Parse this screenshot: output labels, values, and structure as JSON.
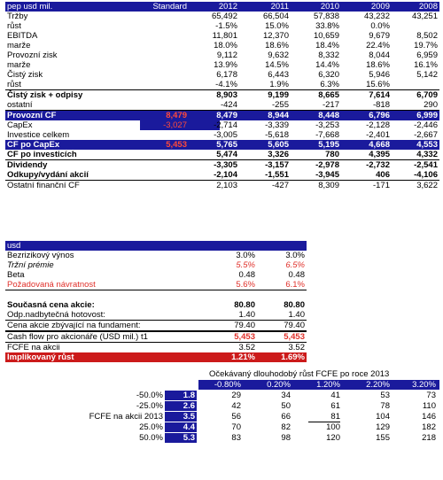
{
  "t1": {
    "header": {
      "label": "pep usd mil.",
      "standard": "Standard",
      "years": [
        "2012",
        "2011",
        "2010",
        "2009",
        "2008"
      ]
    },
    "rows": [
      {
        "label": "Tržby",
        "std": "",
        "vals": [
          "65,492",
          "66,504",
          "57,838",
          "43,232",
          "43,251"
        ],
        "style": ""
      },
      {
        "label": "   růst",
        "std": "",
        "vals": [
          "-1.5%",
          "15.0%",
          "33.8%",
          "0.0%",
          ""
        ],
        "style": ""
      },
      {
        "label": "EBITDA",
        "std": "",
        "vals": [
          "11,801",
          "12,370",
          "10,659",
          "9,679",
          "8,502"
        ],
        "style": ""
      },
      {
        "label": "   marže",
        "std": "",
        "vals": [
          "18.0%",
          "18.6%",
          "18.4%",
          "22.4%",
          "19.7%"
        ],
        "style": ""
      },
      {
        "label": "Provozní zisk",
        "std": "",
        "vals": [
          "9,112",
          "9,632",
          "8,332",
          "8,044",
          "6,959"
        ],
        "style": ""
      },
      {
        "label": "   marže",
        "std": "",
        "vals": [
          "13.9%",
          "14.5%",
          "14.4%",
          "18.6%",
          "16.1%"
        ],
        "style": ""
      },
      {
        "label": "Čistý zisk",
        "std": "",
        "vals": [
          "6,178",
          "6,443",
          "6,320",
          "5,946",
          "5,142"
        ],
        "style": ""
      },
      {
        "label": "   růst",
        "std": "",
        "vals": [
          "-4.1%",
          "1.9%",
          "6.3%",
          "15.6%",
          ""
        ],
        "style": "ul"
      },
      {
        "label": "Čistý zisk + odpisy",
        "std": "",
        "vals": [
          "8,903",
          "9,199",
          "8,665",
          "7,614",
          "6,709"
        ],
        "style": "bold"
      },
      {
        "label": "ostatní",
        "std": "",
        "vals": [
          "-424",
          "-255",
          "-217",
          "-818",
          "290"
        ],
        "style": "ul"
      },
      {
        "label": "Provozní CF",
        "std": "8,479",
        "vals": [
          "8,479",
          "8,944",
          "8,448",
          "6,796",
          "6,999"
        ],
        "style": "hdr bold"
      },
      {
        "label": "CapEx",
        "std": "-3,027",
        "vals": [
          "-2,714",
          "-3,339",
          "-3,253",
          "-2,128",
          "-2,446"
        ],
        "style": "capex"
      },
      {
        "label": "Investice celkem",
        "std": "",
        "vals": [
          "-3,005",
          "-5,618",
          "-7,668",
          "-2,401",
          "-2,667"
        ],
        "style": ""
      },
      {
        "label": "CF po CapEx",
        "std": "5,453",
        "vals": [
          "5,765",
          "5,605",
          "5,195",
          "4,668",
          "4,553"
        ],
        "style": "hdr bold"
      },
      {
        "label": "CF po investicích",
        "std": "",
        "vals": [
          "5,474",
          "3,326",
          "780",
          "4,395",
          "4,332"
        ],
        "style": "bold ul"
      },
      {
        "label": "Dividendy",
        "std": "",
        "vals": [
          "-3,305",
          "-3,157",
          "-2,978",
          "-2,732",
          "-2,541"
        ],
        "style": "bold"
      },
      {
        "label": "Odkupy/vydání akcií",
        "std": "",
        "vals": [
          "-2,104",
          "-1,551",
          "-3,945",
          "406",
          "-4,106"
        ],
        "style": "bold ul"
      },
      {
        "label": "Ostatní finanční CF",
        "std": "",
        "vals": [
          "2,103",
          "-427",
          "8,309",
          "-171",
          "3,622"
        ],
        "style": ""
      }
    ]
  },
  "t2": {
    "header": "usd",
    "rows": [
      {
        "label": "Bezrizikový výnos",
        "a": "3.0%",
        "b": "3.0%",
        "style": ""
      },
      {
        "label": "Tržní prémie",
        "a": "5.5%",
        "b": "6.5%",
        "style": "ital-red"
      },
      {
        "label": "Beta",
        "a": "0.48",
        "b": "0.48",
        "style": ""
      },
      {
        "label": "Požadovaná návratnost",
        "a": "5.6%",
        "b": "6.1%",
        "style": "red ul"
      },
      {
        "label": "",
        "a": "",
        "b": "",
        "style": ""
      },
      {
        "label": "Současná cena akcie:",
        "a": "80.80",
        "b": "80.80",
        "style": "bold"
      },
      {
        "label": "Odp.nadbytečná hotovost:",
        "a": "1.40",
        "b": "1.40",
        "style": "ul"
      },
      {
        "label": "Cena akcie zbývající na fundament:",
        "a": "79.40",
        "b": "79.40",
        "style": "ul"
      },
      {
        "label": "Cash flow pro akcionáře (USD mil.) t1",
        "a": "5,453",
        "b": "5,453",
        "style": "redval"
      },
      {
        "label": "FCFE na akcii",
        "a": "3.52",
        "b": "3.52",
        "style": ""
      },
      {
        "label": "Implikovaný růst",
        "a": "1.21%",
        "b": "1.69%",
        "style": "redbg"
      }
    ]
  },
  "t3": {
    "title": "Očekávaný dlouhodobý růst FCFE po roce 2013",
    "cols": [
      "-0.80%",
      "0.20%",
      "1.20%",
      "2.20%",
      "3.20%"
    ],
    "rows": [
      {
        "label": "-50.0%",
        "key": "1.8",
        "vals": [
          "29",
          "34",
          "41",
          "53",
          "73"
        ]
      },
      {
        "label": "-25.0%",
        "key": "2.6",
        "vals": [
          "42",
          "50",
          "61",
          "78",
          "110"
        ]
      },
      {
        "label": "FCFE na akcii  2013",
        "key": "3.5",
        "vals": [
          "56",
          "66",
          "81",
          "104",
          "146"
        ]
      },
      {
        "label": "25.0%",
        "key": "4.4",
        "vals": [
          "70",
          "82",
          "100",
          "129",
          "182"
        ]
      },
      {
        "label": "50.0%",
        "key": "5.3",
        "vals": [
          "83",
          "98",
          "120",
          "155",
          "218"
        ]
      }
    ]
  }
}
